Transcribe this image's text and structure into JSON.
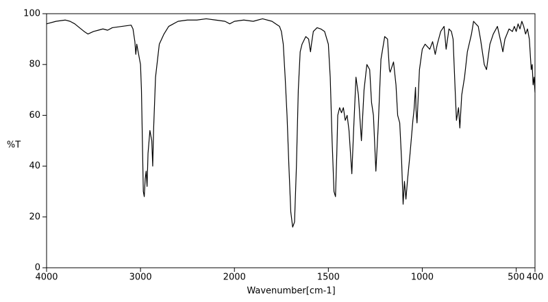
{
  "chart_data": {
    "type": "line",
    "xlabel": "Wavenumber[cm-1]",
    "ylabel": "%T",
    "xlim": [
      4000,
      400
    ],
    "ylim": [
      0,
      100
    ],
    "xticks": [
      4000,
      3000,
      2000,
      1500,
      1000,
      500,
      400
    ],
    "yticks": [
      0,
      20,
      40,
      60,
      80,
      100
    ],
    "x_scale_change": {
      "at": 2000,
      "ratio": 2
    },
    "color": "#000000",
    "x": [
      4000,
      3900,
      3800,
      3750,
      3700,
      3650,
      3600,
      3560,
      3500,
      3450,
      3400,
      3350,
      3300,
      3200,
      3100,
      3080,
      3060,
      3050,
      3040,
      3020,
      3000,
      2990,
      2980,
      2970,
      2960,
      2950,
      2940,
      2930,
      2920,
      2900,
      2880,
      2870,
      2860,
      2840,
      2800,
      2750,
      2700,
      2650,
      2600,
      2500,
      2400,
      2300,
      2200,
      2100,
      2050,
      2000,
      1950,
      1900,
      1850,
      1800,
      1780,
      1760,
      1750,
      1740,
      1730,
      1720,
      1710,
      1700,
      1690,
      1680,
      1670,
      1660,
      1650,
      1640,
      1620,
      1605,
      1595,
      1590,
      1580,
      1560,
      1540,
      1520,
      1500,
      1490,
      1480,
      1470,
      1462,
      1455,
      1450,
      1440,
      1430,
      1420,
      1410,
      1400,
      1390,
      1375,
      1365,
      1353,
      1340,
      1324,
      1310,
      1295,
      1280,
      1270,
      1260,
      1247,
      1235,
      1220,
      1200,
      1185,
      1175,
      1171,
      1153,
      1140,
      1131,
      1120,
      1110,
      1102,
      1095,
      1087,
      1078,
      1065,
      1050,
      1044,
      1036,
      1033,
      1028,
      1015,
      1000,
      985,
      960,
      945,
      931,
      920,
      902,
      884,
      873,
      858,
      845,
      836,
      825,
      818,
      807,
      800,
      790,
      775,
      760,
      738,
      727,
      715,
      702,
      690,
      670,
      658,
      640,
      622,
      600,
      582,
      571,
      560,
      538,
      520,
      510,
      500,
      490,
      480,
      470,
      460,
      450,
      440,
      430,
      420,
      415,
      410,
      405,
      400
    ],
    "values": [
      96,
      97,
      97.5,
      97,
      96,
      94.5,
      93,
      92,
      93,
      93.5,
      94,
      93.5,
      94.5,
      95,
      95.5,
      94,
      89,
      84,
      88,
      84,
      80,
      70,
      50,
      30,
      28,
      35,
      38,
      32,
      45,
      54,
      50,
      40,
      55,
      75,
      88,
      92,
      95,
      96,
      97,
      97.5,
      97.5,
      98,
      97.5,
      97,
      96,
      97,
      97.5,
      97,
      98,
      97,
      96,
      95,
      93,
      88,
      75,
      60,
      40,
      22,
      16,
      18,
      40,
      70,
      85,
      88,
      91,
      90,
      85,
      88,
      93,
      94.5,
      94,
      93,
      88,
      75,
      50,
      30,
      28,
      45,
      60,
      63,
      61,
      63,
      58,
      60,
      54,
      37,
      55,
      75,
      68,
      50,
      70,
      80,
      78,
      65,
      60,
      38,
      55,
      82,
      91,
      90,
      78,
      77,
      81,
      72,
      60,
      57,
      42,
      25,
      34,
      27,
      35,
      45,
      58,
      62,
      71,
      62,
      57,
      78,
      86,
      88,
      86,
      89,
      84,
      88,
      93,
      95,
      86,
      94,
      93,
      90,
      70,
      58,
      63,
      55,
      68,
      75,
      85,
      92,
      97,
      96,
      95,
      90,
      80,
      78,
      88,
      92,
      95,
      89,
      85,
      90,
      94,
      93,
      95,
      93,
      96,
      94,
      97,
      95,
      92,
      94,
      90,
      78,
      80,
      72,
      75,
      69
    ]
  }
}
